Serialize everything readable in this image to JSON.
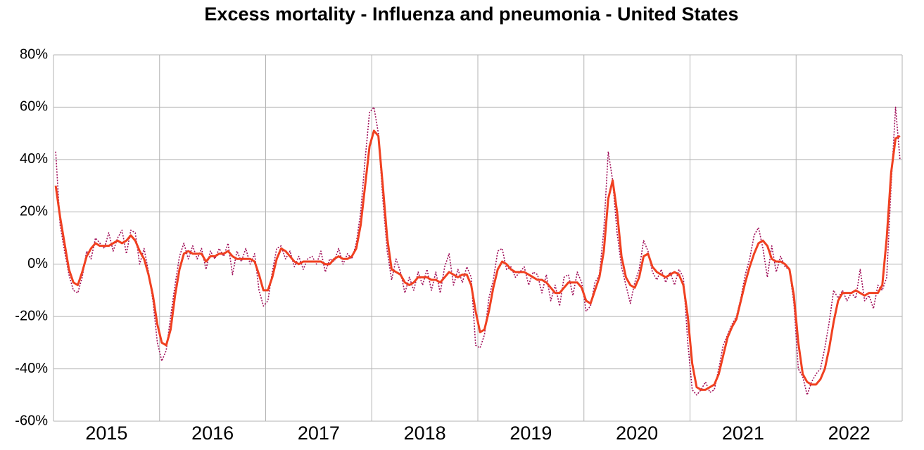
{
  "chart_data": {
    "type": "line",
    "title": "Excess mortality - Influenza and pneumonia - United States",
    "categories": [
      null,
      null,
      null,
      null,
      null,
      null,
      null,
      null,
      null,
      null,
      null,
      null,
      "2015",
      null,
      null,
      null,
      null,
      null,
      null,
      null,
      null,
      null,
      null,
      null,
      null,
      null,
      null,
      null,
      null,
      null,
      null,
      null,
      null,
      null,
      null,
      null,
      "2016",
      null,
      null,
      null,
      null,
      null,
      null,
      null,
      null,
      null,
      null,
      null,
      null,
      null,
      null,
      null,
      null,
      null,
      null,
      null,
      null,
      null,
      null,
      null,
      "2017",
      null,
      null,
      null,
      null,
      null,
      null,
      null,
      null,
      null,
      null,
      null,
      null,
      null,
      null,
      null,
      null,
      null,
      null,
      null,
      null,
      null,
      null,
      null,
      "2018",
      null,
      null,
      null,
      null,
      null,
      null,
      null,
      null,
      null,
      null,
      null,
      null,
      null,
      null,
      null,
      null,
      null,
      null,
      null,
      null,
      null,
      null,
      null,
      "2019",
      null,
      null,
      null,
      null,
      null,
      null,
      null,
      null,
      null,
      null,
      null,
      null,
      null,
      null,
      null,
      null,
      null,
      null,
      null,
      null,
      null,
      null,
      null,
      "2020",
      null,
      null,
      null,
      null,
      null,
      null,
      null,
      null,
      null,
      null,
      null,
      null,
      null,
      null,
      null,
      null,
      null,
      null,
      null,
      null,
      null,
      null,
      null,
      "2021",
      null,
      null,
      null,
      null,
      null,
      null,
      null,
      null,
      null,
      null,
      null,
      null,
      null,
      null,
      null,
      null,
      null,
      null,
      null,
      null,
      null,
      null,
      null,
      "2022",
      null,
      null,
      null,
      null,
      null,
      null,
      null,
      null,
      null,
      null,
      null
    ],
    "series": [
      {
        "color": "#a0105a",
        "style": "dotted",
        "values": [
          43,
          15,
          5,
          -4,
          -10,
          -11,
          -5,
          5,
          2,
          10,
          8,
          6,
          12,
          5,
          10,
          13,
          4,
          13,
          12,
          0,
          6,
          -3,
          -14,
          -30,
          -37,
          -33,
          -20,
          -8,
          3,
          8,
          2,
          7,
          2,
          6,
          -2,
          5,
          2,
          6,
          3,
          8,
          -4,
          5,
          1,
          6,
          0,
          4,
          -10,
          -16,
          -14,
          -3,
          6,
          7,
          2,
          5,
          -1,
          3,
          -2,
          2,
          3,
          0,
          5,
          -3,
          2,
          1,
          6,
          0,
          4,
          2,
          8,
          20,
          40,
          58,
          60,
          50,
          25,
          5,
          -6,
          2,
          -3,
          -11,
          -5,
          -10,
          -3,
          -8,
          -2,
          -10,
          -3,
          -11,
          -1,
          4,
          -8,
          -2,
          -7,
          -1,
          -5,
          -31,
          -32,
          -27,
          -13,
          -6,
          5,
          6,
          -2,
          -1,
          -5,
          -3,
          -1,
          -8,
          -3,
          -4,
          -11,
          -4,
          -14,
          -8,
          -16,
          -5,
          -4,
          -12,
          -3,
          -7,
          -18,
          -16,
          -7,
          -4,
          13,
          43,
          32,
          12,
          -1,
          -8,
          -15,
          -7,
          -2,
          9,
          5,
          -3,
          -6,
          -2,
          -7,
          -3,
          -8,
          -2,
          -5,
          -30,
          -48,
          -50,
          -48,
          -45,
          -49,
          -48,
          -40,
          -31,
          -27,
          -23,
          -20,
          -13,
          -4,
          2,
          11,
          14,
          6,
          -5,
          7,
          -3,
          3,
          -1,
          -2,
          -15,
          -40,
          -43,
          -50,
          -45,
          -42,
          -40,
          -32,
          -22,
          -10,
          -13,
          -10,
          -14,
          -11,
          -13,
          -2,
          -14,
          -12,
          -17,
          -8,
          -10,
          -5,
          30,
          60,
          40
        ]
      },
      {
        "color": "#f04020",
        "style": "solid",
        "values": [
          30,
          18,
          8,
          -2,
          -7,
          -8,
          -3,
          3,
          6,
          8,
          7,
          7,
          7,
          8,
          9,
          8,
          9,
          11,
          9,
          5,
          2,
          -4,
          -12,
          -23,
          -30,
          -31,
          -25,
          -12,
          -2,
          4,
          5,
          4,
          4,
          4,
          1,
          3,
          3,
          4,
          4,
          5,
          3,
          2,
          2,
          2,
          2,
          1,
          -4,
          -10,
          -10,
          -5,
          2,
          6,
          5,
          3,
          1,
          0,
          1,
          1,
          1,
          1,
          1,
          0,
          0,
          2,
          3,
          2,
          2,
          3,
          6,
          15,
          30,
          45,
          51,
          49,
          30,
          10,
          -2,
          -3,
          -4,
          -7,
          -8,
          -7,
          -5,
          -5,
          -5,
          -6,
          -6,
          -7,
          -5,
          -3,
          -4,
          -5,
          -4,
          -4,
          -8,
          -18,
          -26,
          -25,
          -18,
          -9,
          -2,
          1,
          0,
          -2,
          -3,
          -3,
          -3,
          -4,
          -5,
          -6,
          -6,
          -7,
          -9,
          -11,
          -11,
          -9,
          -7,
          -7,
          -7,
          -9,
          -14,
          -15,
          -10,
          -5,
          5,
          25,
          32,
          20,
          3,
          -5,
          -8,
          -9,
          -5,
          3,
          4,
          -1,
          -3,
          -4,
          -5,
          -4,
          -3,
          -4,
          -8,
          -20,
          -38,
          -47,
          -48,
          -48,
          -47,
          -46,
          -42,
          -35,
          -28,
          -24,
          -21,
          -14,
          -7,
          -1,
          4,
          8,
          9,
          7,
          2,
          1,
          1,
          0,
          -2,
          -12,
          -30,
          -42,
          -45,
          -46,
          -46,
          -44,
          -40,
          -32,
          -22,
          -14,
          -11,
          -11,
          -11,
          -10,
          -11,
          -12,
          -11,
          -11,
          -11,
          -8,
          10,
          35,
          48,
          49
        ]
      }
    ],
    "ylim": [
      -60,
      80
    ],
    "yticks": [
      {
        "value": -60,
        "label": "-60%"
      },
      {
        "value": -40,
        "label": "-40%"
      },
      {
        "value": -20,
        "label": "-20%"
      },
      {
        "value": 0,
        "label": "0%"
      },
      {
        "value": 20,
        "label": "20%"
      },
      {
        "value": 40,
        "label": "40%"
      },
      {
        "value": 60,
        "label": "60%"
      },
      {
        "value": 80,
        "label": "80%"
      }
    ],
    "grid": true
  }
}
